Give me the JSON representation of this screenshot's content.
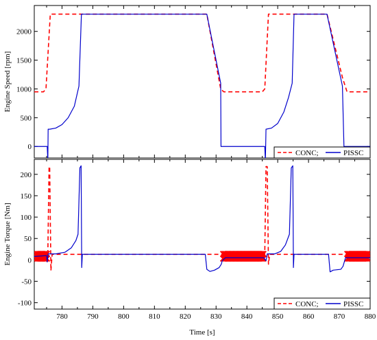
{
  "chart_data": [
    {
      "type": "line",
      "ylabel": "Engine Speed [rpm]",
      "xlim": [
        771,
        880
      ],
      "ylim": [
        -200,
        2450
      ],
      "yticks": [
        0,
        500,
        1000,
        1500,
        2000
      ],
      "xticks": [
        780,
        790,
        800,
        810,
        820,
        830,
        840,
        850,
        860,
        870,
        880
      ],
      "legend": "bottom-right",
      "series": [
        {
          "name": "CONC;",
          "color": "#ff0000",
          "style": "dashed",
          "points": [
            [
              771,
              950
            ],
            [
              774,
              950
            ],
            [
              774.8,
              1000
            ],
            [
              776.2,
              2300
            ],
            [
              827,
              2300
            ],
            [
              831.5,
              1000
            ],
            [
              832.5,
              950
            ],
            [
              845,
              950
            ],
            [
              845.8,
              1000
            ],
            [
              847,
              2300
            ],
            [
              866,
              2300
            ],
            [
              871,
              1200
            ],
            [
              872.5,
              950
            ],
            [
              880,
              950
            ]
          ]
        },
        {
          "name": "PISSC",
          "color": "#0000cc",
          "style": "solid",
          "points": [
            [
              771,
              0
            ],
            [
              775.2,
              0
            ],
            [
              775.4,
              -250
            ],
            [
              775.5,
              300
            ],
            [
              776,
              300
            ],
            [
              778,
              320
            ],
            [
              780,
              380
            ],
            [
              782,
              500
            ],
            [
              784,
              700
            ],
            [
              785.5,
              1050
            ],
            [
              786.3,
              2300
            ],
            [
              827,
              2300
            ],
            [
              831.5,
              1100
            ],
            [
              831.6,
              0
            ],
            [
              845.8,
              0
            ],
            [
              846,
              -250
            ],
            [
              846.2,
              300
            ],
            [
              848,
              320
            ],
            [
              850,
              400
            ],
            [
              852,
              600
            ],
            [
              853.5,
              850
            ],
            [
              854.7,
              1100
            ],
            [
              855.3,
              2300
            ],
            [
              866,
              2300
            ],
            [
              871,
              1050
            ],
            [
              871.5,
              0
            ],
            [
              880,
              0
            ]
          ]
        }
      ]
    },
    {
      "type": "line",
      "ylabel": "Engine Torque [Nm]",
      "xlabel": "Time [s]",
      "xlim": [
        771,
        880
      ],
      "ylim": [
        -115,
        235
      ],
      "yticks": [
        -100,
        -50,
        0,
        50,
        100,
        150,
        200
      ],
      "xticks": [
        780,
        790,
        800,
        810,
        820,
        830,
        840,
        850,
        860,
        870,
        880
      ],
      "legend": "bottom-right",
      "series": [
        {
          "name": "CONC;",
          "color": "#ff0000",
          "style": "dashed",
          "points": [
            [
              771,
              13
            ],
            [
              775.4,
              13
            ],
            [
              775.8,
              218
            ],
            [
              776,
              218
            ],
            [
              776.4,
              -25
            ],
            [
              776.8,
              13
            ],
            [
              845.8,
              13
            ],
            [
              846.2,
              218
            ],
            [
              846.6,
              218
            ],
            [
              847,
              -10
            ],
            [
              847.4,
              13
            ],
            [
              880,
              13
            ]
          ]
        },
        {
          "name": "PISSC",
          "color": "#0000cc",
          "style": "solid",
          "points": [
            [
              771,
              8
            ],
            [
              775,
              10
            ],
            [
              775.2,
              -5
            ],
            [
              775.5,
              14
            ],
            [
              778,
              14
            ],
            [
              781,
              18
            ],
            [
              783,
              28
            ],
            [
              784.5,
              45
            ],
            [
              785.2,
              60
            ],
            [
              785.8,
              215
            ],
            [
              786.2,
              220
            ],
            [
              786.4,
              -18
            ],
            [
              786.6,
              13
            ],
            [
              826.5,
              13
            ],
            [
              827,
              -22
            ],
            [
              828,
              -27
            ],
            [
              829.5,
              -24
            ],
            [
              831,
              -18
            ],
            [
              831.7,
              -10
            ],
            [
              832,
              -2
            ],
            [
              833,
              5
            ],
            [
              845.5,
              5
            ],
            [
              846.2,
              -2
            ],
            [
              846.6,
              14
            ],
            [
              849,
              14
            ],
            [
              851,
              20
            ],
            [
              852.5,
              35
            ],
            [
              853.8,
              60
            ],
            [
              854.4,
              215
            ],
            [
              854.9,
              220
            ],
            [
              855.1,
              -18
            ],
            [
              855.3,
              13
            ],
            [
              866.5,
              13
            ],
            [
              867,
              -28
            ],
            [
              868,
              -24
            ],
            [
              870.5,
              -22
            ],
            [
              871.2,
              -15
            ],
            [
              872,
              5
            ],
            [
              880,
              5
            ]
          ]
        }
      ],
      "markers": [
        {
          "series": "CONC;",
          "color": "#ff0000",
          "symbol": "x",
          "ranges": [
            [
              771.5,
              775.3
            ],
            [
              832.3,
              845.5
            ],
            [
              872.6,
              879.6
            ]
          ],
          "values": [
            3,
            14
          ]
        }
      ]
    }
  ]
}
